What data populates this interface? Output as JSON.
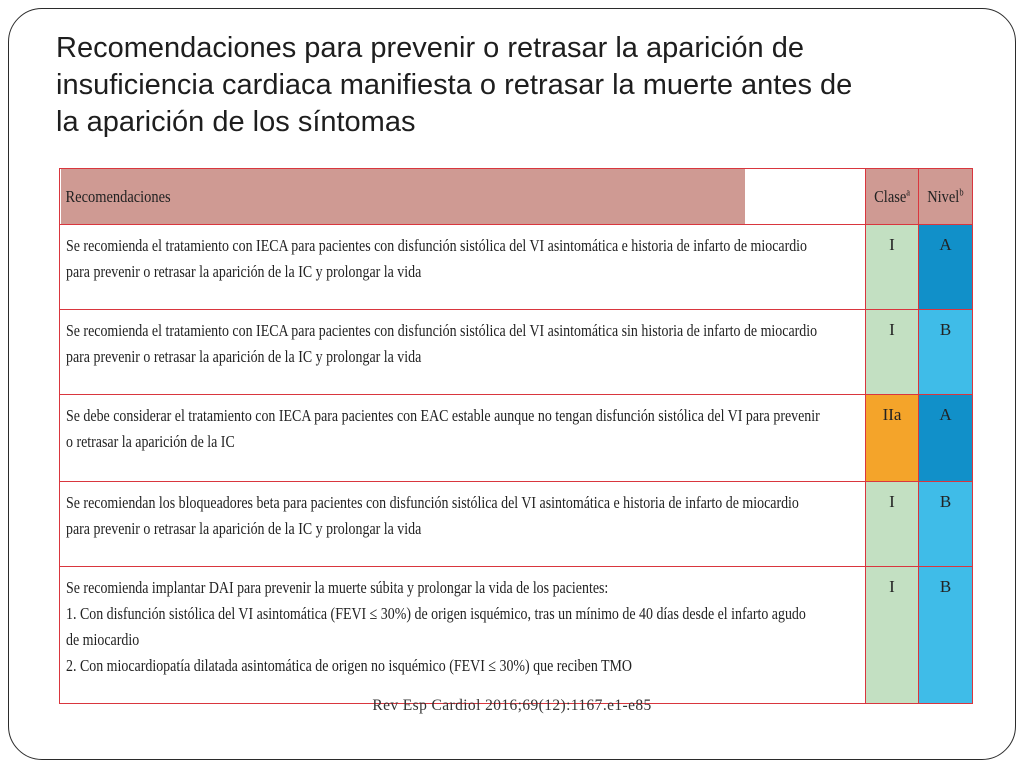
{
  "slide": {
    "title_lines": [
      "Recomendaciones para prevenir o retrasar la aparición de",
      "insuficiencia cardiaca manifiesta o retrasar la muerte antes de",
      "la aparición de los síntomas"
    ],
    "citation": "Rev Esp Cardiol 2016;69(12):1167.e1-e85"
  },
  "table": {
    "headers": {
      "recommendations": "Recomendaciones",
      "class": "Clase",
      "class_sup": "a",
      "level": "Nivel",
      "level_sup": "b"
    },
    "rows": [
      {
        "lines": [
          "Se recomienda el tratamiento con IECA para pacientes con disfunción sistólica del VI asintomática e historia de infarto de miocardio",
          "para prevenir o retrasar la aparición de la IC y prolongar la vida"
        ],
        "class": "I",
        "level": "A",
        "class_color": "#c3e0c2",
        "level_color": "#1190c9"
      },
      {
        "lines": [
          "Se recomienda el tratamiento con IECA para pacientes con disfunción sistólica del VI asintomática sin historia de infarto de miocardio",
          "para prevenir o retrasar la aparición de la IC y prolongar la vida"
        ],
        "class": "I",
        "level": "B",
        "class_color": "#c3e0c2",
        "level_color": "#3fbce8"
      },
      {
        "lines": [
          "Se debe considerar el tratamiento con IECA para pacientes con EAC estable aunque no tengan disfunción sistólica del VI para prevenir",
          "o retrasar la aparición de la IC"
        ],
        "class": "IIa",
        "level": "A",
        "class_color": "#f4a42a",
        "level_color": "#1190c9"
      },
      {
        "lines": [
          "Se recomiendan los bloqueadores beta para pacientes con disfunción sistólica del VI asintomática e historia de infarto de miocardio",
          "para prevenir o retrasar la aparición de la IC y prolongar la vida"
        ],
        "class": "I",
        "level": "B",
        "class_color": "#c3e0c2",
        "level_color": "#3fbce8"
      },
      {
        "lines": [
          "Se recomienda implantar DAI para prevenir la muerte súbita y prolongar la vida de los pacientes:",
          "1. Con disfunción sistólica del VI asintomática (FEVI ≤ 30%) de origen isquémico, tras un mínimo de 40 días desde el infarto agudo",
          "de miocardio",
          "2. Con miocardiopatía dilatada asintomática de origen no isquémico (FEVI ≤ 30%) que reciben TMO"
        ],
        "class": "I",
        "level": "B",
        "class_color": "#c3e0c2",
        "level_color": "#3fbce8"
      }
    ]
  },
  "colors": {
    "header_bg": "#cf9a93",
    "border_red": "#d9363e",
    "class_I": "#c3e0c2",
    "class_IIa": "#f4a42a",
    "level_A": "#1190c9",
    "level_B": "#3fbce8"
  }
}
